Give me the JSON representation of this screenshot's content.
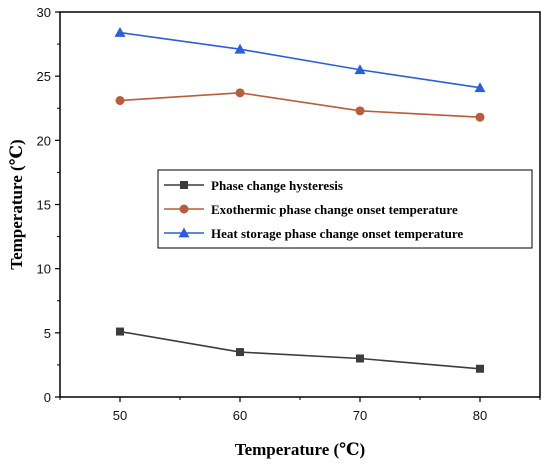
{
  "chart_data": {
    "type": "line",
    "title": "",
    "xlabel": "Temperature (℃)",
    "ylabel": "Temperature (℃)",
    "x": [
      50,
      60,
      70,
      80
    ],
    "xlim": [
      45,
      85
    ],
    "ylim": [
      0,
      30
    ],
    "x_ticks": [
      "50",
      "60",
      "70",
      "80"
    ],
    "y_ticks": [
      "0",
      "5",
      "10",
      "15",
      "20",
      "25",
      "30"
    ],
    "grid": false,
    "legend_position": "center-right",
    "series": [
      {
        "name": "Phase change hysteresis",
        "values": [
          5.1,
          3.5,
          3.0,
          2.2
        ],
        "color": "#3c3c3c",
        "marker": "square"
      },
      {
        "name": "Exothermic phase change onset temperature",
        "values": [
          23.1,
          23.7,
          22.3,
          21.8
        ],
        "color": "#b85c3c",
        "marker": "circle"
      },
      {
        "name": "Heat storage phase change onset temperature",
        "values": [
          28.4,
          27.1,
          25.5,
          24.1
        ],
        "color": "#2b5fd9",
        "marker": "triangle"
      }
    ]
  }
}
